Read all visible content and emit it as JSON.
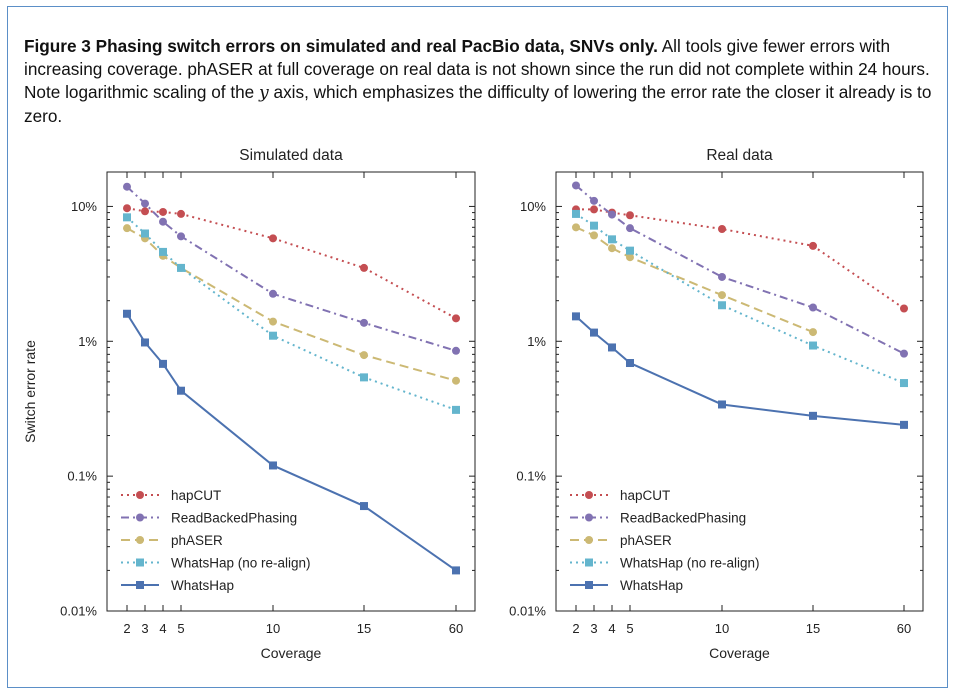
{
  "caption": {
    "bold": "Figure 3 Phasing switch errors on simulated and real PacBio data, SNVs only.",
    "text_before_var": " All tools give fewer errors with increasing coverage. phASER at full coverage on real data is not shown since the run did not complete within 24 hours. Note logarithmic scaling of the ",
    "var": "y",
    "text_after_var": " axis, which emphasizes the difficulty of lowering the error rate the closer it already is to zero."
  },
  "chart_data": [
    {
      "type": "line",
      "title": "Simulated data",
      "xlabel": "Coverage",
      "ylabel": "Switch error rate",
      "yscale": "log",
      "ylim": [
        0.0001,
        0.18
      ],
      "x": [
        "2",
        "3",
        "4",
        "5",
        "10",
        "15",
        "60"
      ],
      "yticks": [
        "0.01%",
        "0.1%",
        "1%",
        "10%"
      ],
      "legend": "lower-left",
      "series": [
        {
          "name": "hapCUT",
          "color": "#c44e52",
          "style": "dotted",
          "marker": "circle",
          "values": [
            0.097,
            0.092,
            0.091,
            0.088,
            0.058,
            0.035,
            0.0148
          ]
        },
        {
          "name": "ReadBackedPhasing",
          "color": "#8172b2",
          "style": "dashdot",
          "marker": "circle",
          "values": [
            0.14,
            0.105,
            0.077,
            0.06,
            0.0225,
            0.0137,
            0.0085
          ]
        },
        {
          "name": "phASER",
          "color": "#ccb974",
          "style": "dashed",
          "marker": "circle",
          "values": [
            0.069,
            0.058,
            0.043,
            0.035,
            0.014,
            0.0079,
            0.0051
          ]
        },
        {
          "name": "WhatsHap (no re-align)",
          "color": "#64b5cd",
          "style": "dotted",
          "marker": "square",
          "values": [
            0.083,
            0.063,
            0.046,
            0.035,
            0.011,
            0.0054,
            0.0031
          ]
        },
        {
          "name": "WhatsHap",
          "color": "#4c72b0",
          "style": "solid",
          "marker": "square",
          "values": [
            0.016,
            0.0098,
            0.0068,
            0.0043,
            0.0012,
            0.0006,
            0.0002
          ]
        }
      ]
    },
    {
      "type": "line",
      "title": "Real data",
      "xlabel": "Coverage",
      "ylabel": "",
      "yscale": "log",
      "ylim": [
        0.0001,
        0.18
      ],
      "x": [
        "2",
        "3",
        "4",
        "5",
        "10",
        "15",
        "60"
      ],
      "yticks": [
        "0.01%",
        "0.1%",
        "1%",
        "10%"
      ],
      "legend": "lower-left",
      "series": [
        {
          "name": "hapCUT",
          "color": "#c44e52",
          "style": "dotted",
          "marker": "circle",
          "values": [
            0.095,
            0.095,
            0.09,
            0.086,
            0.068,
            0.051,
            0.0175
          ]
        },
        {
          "name": "ReadBackedPhasing",
          "color": "#8172b2",
          "style": "dashdot",
          "marker": "circle",
          "values": [
            0.143,
            0.11,
            0.087,
            0.069,
            0.03,
            0.0178,
            0.0081
          ]
        },
        {
          "name": "phASER",
          "color": "#ccb974",
          "style": "dashed",
          "marker": "circle",
          "values": [
            0.07,
            0.061,
            0.049,
            0.042,
            0.022,
            0.0117,
            null
          ]
        },
        {
          "name": "WhatsHap (no re-align)",
          "color": "#64b5cd",
          "style": "dotted",
          "marker": "square",
          "values": [
            0.088,
            0.072,
            0.057,
            0.047,
            0.0185,
            0.0093,
            0.0049
          ]
        },
        {
          "name": "WhatsHap",
          "color": "#4c72b0",
          "style": "solid",
          "marker": "square",
          "values": [
            0.0153,
            0.0116,
            0.009,
            0.0069,
            0.0034,
            0.0028,
            0.0024
          ]
        }
      ]
    }
  ]
}
